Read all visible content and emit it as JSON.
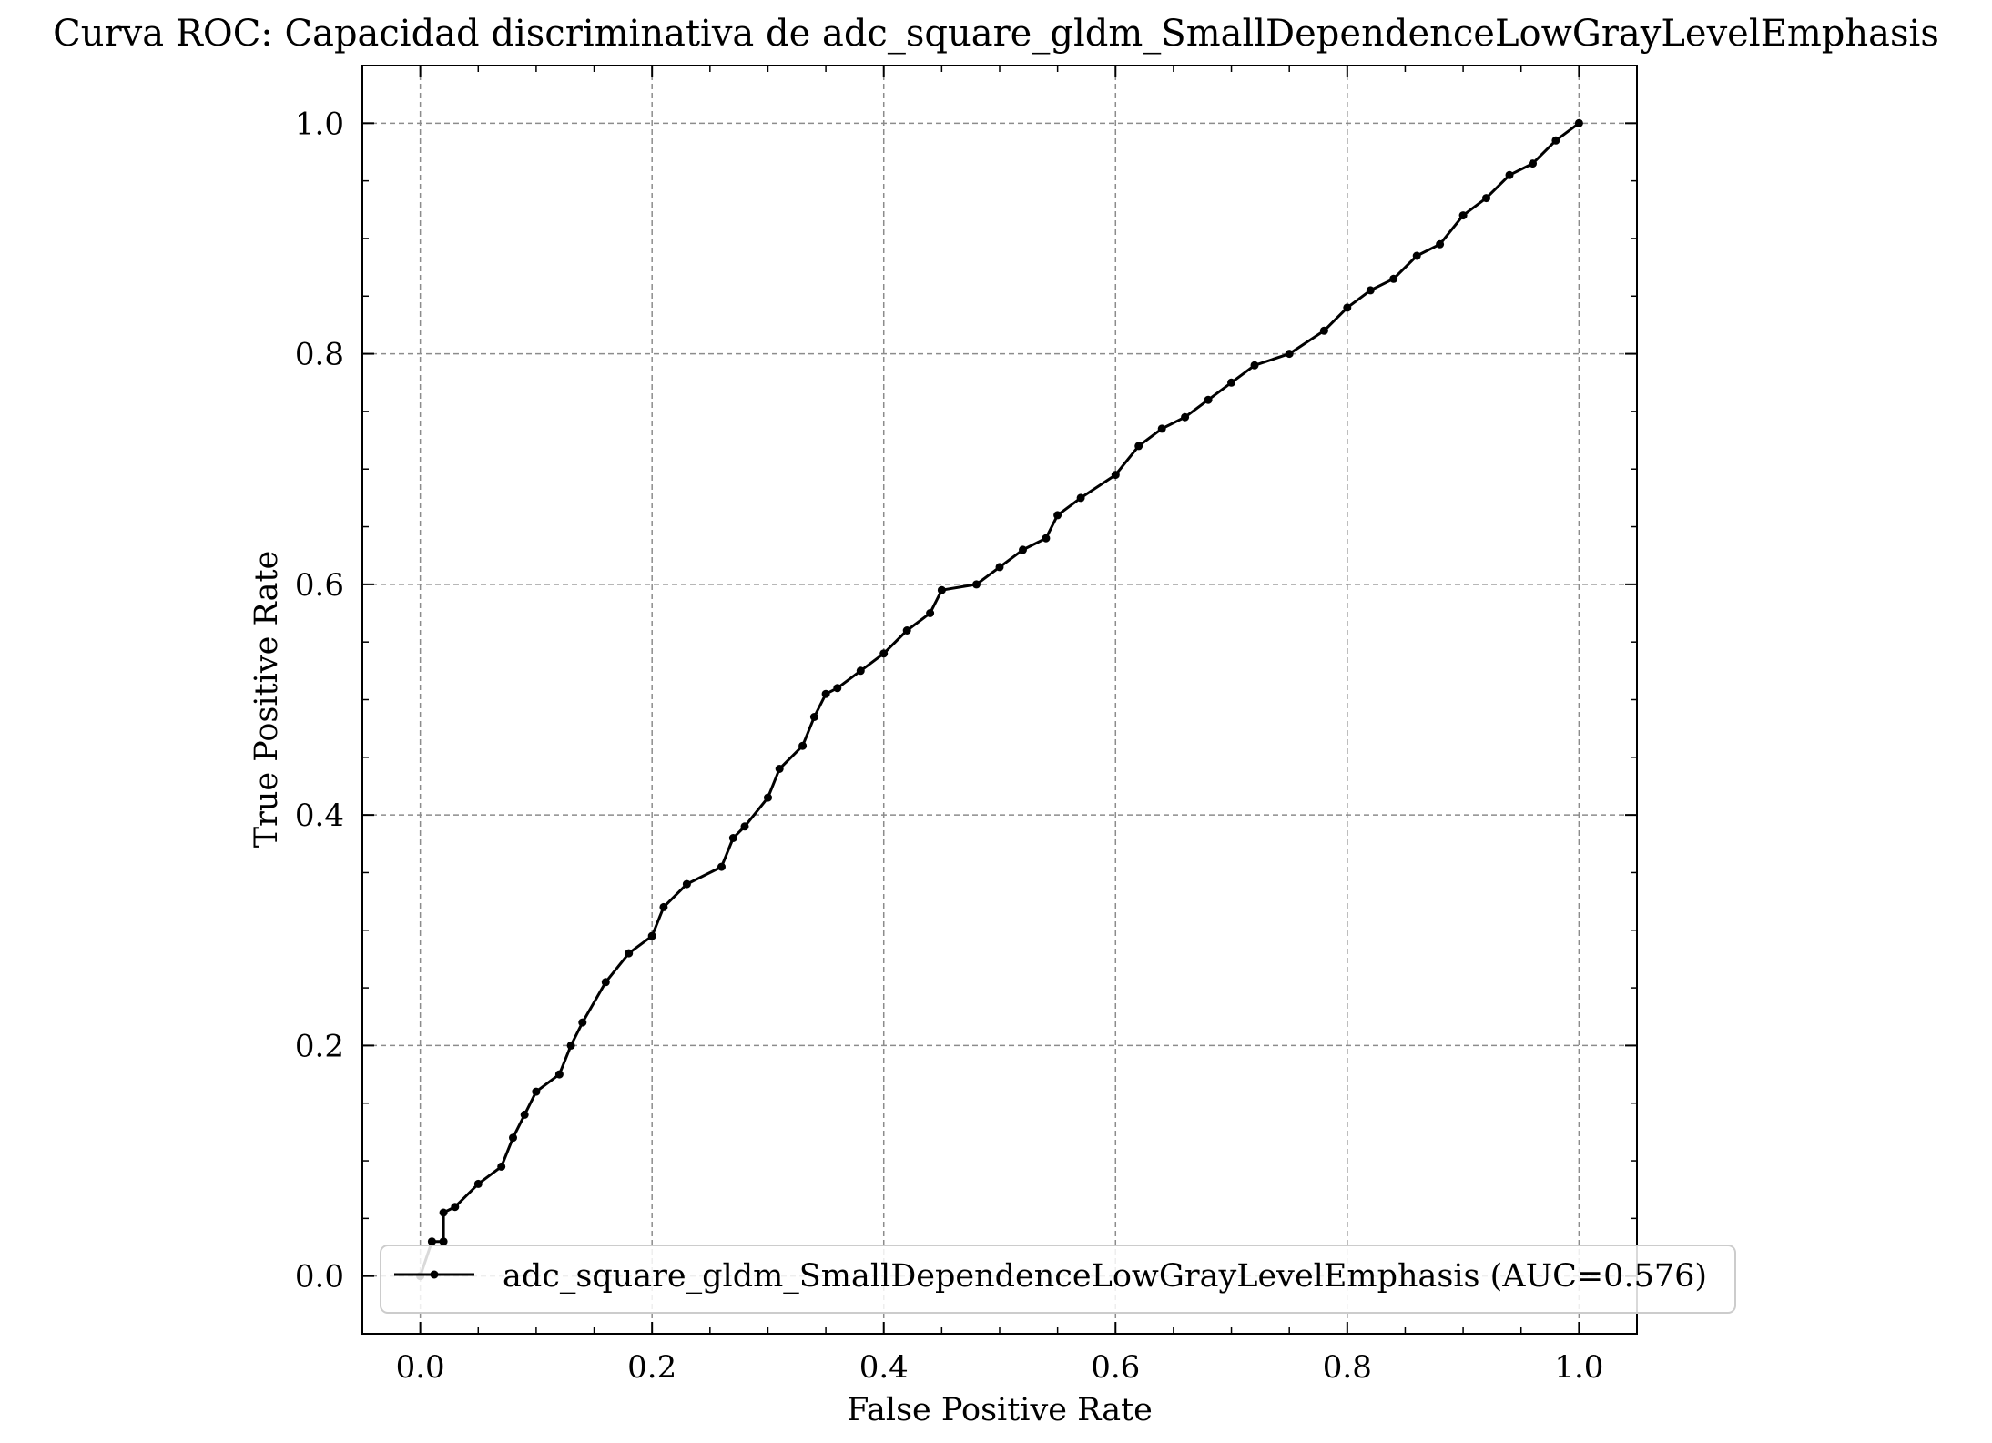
{
  "chart_data": {
    "type": "line",
    "title": "Curva ROC: Capacidad discriminativa de adc_square_gldm_SmallDependenceLowGrayLevelEmphasis",
    "xlabel": "False Positive Rate",
    "ylabel": "True Positive Rate",
    "xlim": [
      -0.05,
      1.05
    ],
    "ylim": [
      -0.05,
      1.05
    ],
    "xticks": [
      0.0,
      0.2,
      0.4,
      0.6,
      0.8,
      1.0
    ],
    "yticks": [
      0.0,
      0.2,
      0.4,
      0.6,
      0.8,
      1.0
    ],
    "xtick_labels": [
      "0.0",
      "0.2",
      "0.4",
      "0.6",
      "0.8",
      "1.0"
    ],
    "ytick_labels": [
      "0.0",
      "0.2",
      "0.4",
      "0.6",
      "0.8",
      "1.0"
    ],
    "grid": true,
    "legend_position": "bottom-center",
    "series": [
      {
        "name": "adc_square_gldm_SmallDependenceLowGrayLevelEmphasis (AUC=0.576)",
        "color": "#000000",
        "marker": "dot",
        "x": [
          0.0,
          0.01,
          0.02,
          0.02,
          0.03,
          0.05,
          0.07,
          0.08,
          0.09,
          0.1,
          0.12,
          0.13,
          0.14,
          0.16,
          0.18,
          0.2,
          0.21,
          0.23,
          0.26,
          0.27,
          0.28,
          0.3,
          0.31,
          0.33,
          0.34,
          0.35,
          0.36,
          0.38,
          0.4,
          0.42,
          0.44,
          0.45,
          0.48,
          0.5,
          0.52,
          0.54,
          0.55,
          0.57,
          0.6,
          0.62,
          0.64,
          0.66,
          0.68,
          0.7,
          0.72,
          0.75,
          0.78,
          0.8,
          0.82,
          0.84,
          0.86,
          0.88,
          0.9,
          0.92,
          0.94,
          0.96,
          0.98,
          1.0
        ],
        "y": [
          0.0,
          0.03,
          0.03,
          0.055,
          0.06,
          0.08,
          0.095,
          0.12,
          0.14,
          0.16,
          0.175,
          0.2,
          0.22,
          0.255,
          0.28,
          0.295,
          0.32,
          0.34,
          0.355,
          0.38,
          0.39,
          0.415,
          0.44,
          0.46,
          0.485,
          0.505,
          0.51,
          0.525,
          0.54,
          0.56,
          0.575,
          0.595,
          0.6,
          0.615,
          0.63,
          0.64,
          0.66,
          0.675,
          0.695,
          0.72,
          0.735,
          0.745,
          0.76,
          0.775,
          0.79,
          0.8,
          0.82,
          0.84,
          0.855,
          0.865,
          0.885,
          0.895,
          0.92,
          0.935,
          0.955,
          0.965,
          0.985,
          1.0
        ]
      }
    ]
  }
}
